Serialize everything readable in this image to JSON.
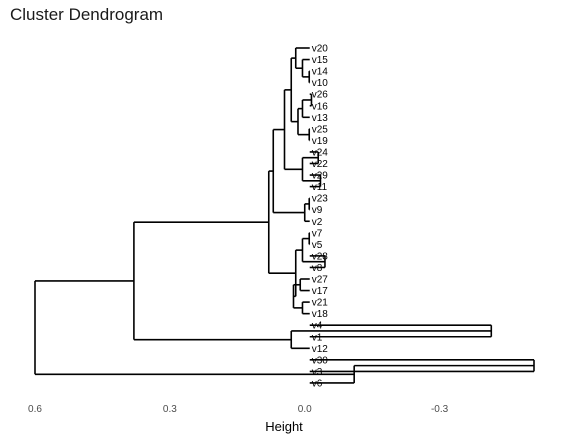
{
  "chart_data": {
    "type": "dendrogram",
    "title": "Cluster Dendrogram",
    "xlabel": "Height",
    "xlim": [
      0.6,
      -0.51
    ],
    "x_ticks": [
      0.6,
      0.3,
      0.0,
      -0.3
    ],
    "x_tick_labels": [
      "0.6",
      "0.3",
      "0.0",
      "-0.3"
    ],
    "grid": false,
    "branch_color": "#000000",
    "leaves": [
      "v20",
      "v15",
      "v14",
      "v10",
      "v26",
      "v16",
      "v13",
      "v25",
      "v19",
      "v24",
      "v22",
      "v29",
      "v11",
      "v23",
      "v9",
      "v2",
      "v7",
      "v5",
      "v28",
      "v8",
      "v27",
      "v17",
      "v21",
      "v18",
      "v4",
      "v1",
      "v12",
      "v30",
      "v3",
      "v6"
    ],
    "merges": [
      {
        "id": "A1",
        "children": [
          "v14",
          "v10"
        ],
        "height": -0.01
      },
      {
        "id": "A2",
        "children": [
          "v15",
          "A1"
        ],
        "height": 0.005
      },
      {
        "id": "A3",
        "children": [
          "v20",
          "A2"
        ],
        "height": 0.02
      },
      {
        "id": "B1",
        "children": [
          "v26",
          "v16"
        ],
        "height": -0.015
      },
      {
        "id": "B2",
        "children": [
          "B1",
          "v13"
        ],
        "height": 0.005
      },
      {
        "id": "B3",
        "children": [
          "v25",
          "v19"
        ],
        "height": -0.01
      },
      {
        "id": "B4",
        "children": [
          "B2",
          "B3"
        ],
        "height": 0.015
      },
      {
        "id": "C1",
        "children": [
          "A3",
          "B4"
        ],
        "height": 0.03
      },
      {
        "id": "D1",
        "children": [
          "v24",
          "v22"
        ],
        "height": -0.03
      },
      {
        "id": "D2",
        "children": [
          "v29",
          "v11"
        ],
        "height": -0.035
      },
      {
        "id": "D3",
        "children": [
          "D1",
          "D2"
        ],
        "height": 0.005
      },
      {
        "id": "E1",
        "children": [
          "C1",
          "D3"
        ],
        "height": 0.045
      },
      {
        "id": "F1",
        "children": [
          "v23",
          "v9"
        ],
        "height": -0.01
      },
      {
        "id": "F2",
        "children": [
          "F1",
          "v2"
        ],
        "height": 0.0
      },
      {
        "id": "G1",
        "children": [
          "E1",
          "F2"
        ],
        "height": 0.07
      },
      {
        "id": "H1",
        "children": [
          "v7",
          "v5"
        ],
        "height": -0.01
      },
      {
        "id": "H2",
        "children": [
          "v28",
          "v8"
        ],
        "height": -0.045
      },
      {
        "id": "H3",
        "children": [
          "H1",
          "H2"
        ],
        "height": 0.005
      },
      {
        "id": "I1",
        "children": [
          "v27",
          "v17"
        ],
        "height": 0.01
      },
      {
        "id": "I2",
        "children": [
          "v21",
          "v18"
        ],
        "height": 0.005
      },
      {
        "id": "I3",
        "children": [
          "I1",
          "I2"
        ],
        "height": 0.025
      },
      {
        "id": "J1",
        "children": [
          "H3",
          "I3"
        ],
        "height": 0.02
      },
      {
        "id": "K1",
        "children": [
          "G1",
          "J1"
        ],
        "height": 0.08
      },
      {
        "id": "L1",
        "children": [
          "v4",
          "v1"
        ],
        "height": -0.415
      },
      {
        "id": "L2",
        "children": [
          "L1",
          "v12"
        ],
        "height": 0.03
      },
      {
        "id": "M1",
        "children": [
          "K1",
          "L2"
        ],
        "height": 0.38
      },
      {
        "id": "N1",
        "children": [
          "v30",
          "v3"
        ],
        "height": -0.51
      },
      {
        "id": "N2",
        "children": [
          "N1",
          "v6"
        ],
        "height": -0.11
      },
      {
        "id": "O1",
        "children": [
          "M1",
          "N2"
        ],
        "height": 0.6
      }
    ]
  }
}
